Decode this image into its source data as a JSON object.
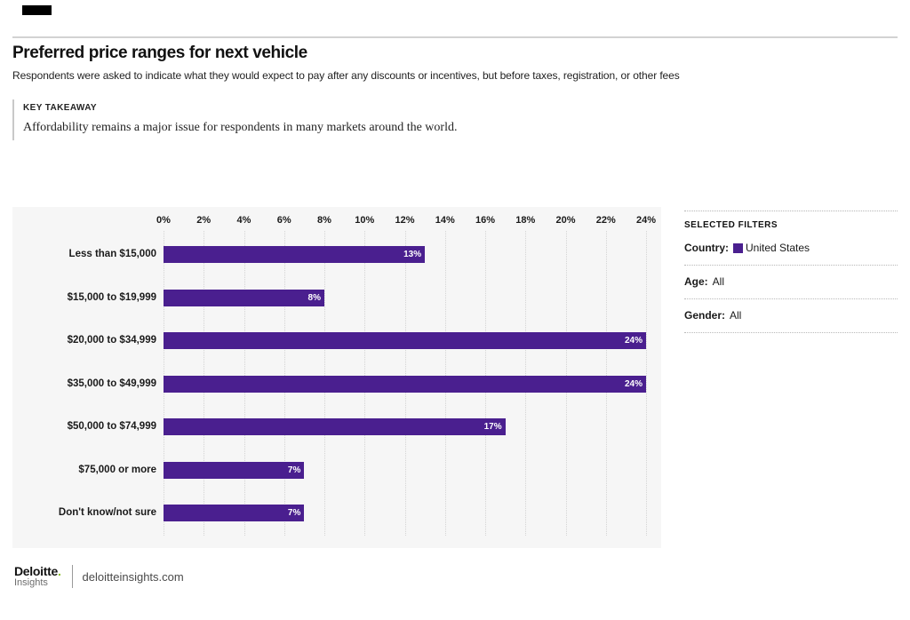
{
  "page": {
    "title": "Preferred price ranges for next vehicle",
    "subtitle": "Respondents were asked to indicate what they would expect to pay after any discounts or incentives, but before taxes, registration, or other fees"
  },
  "key_takeaway": {
    "label": "KEY TAKEAWAY",
    "text": "Affordability remains a major issue for respondents in many markets around the world."
  },
  "chart_data": {
    "type": "bar",
    "orientation": "horizontal",
    "title": "Preferred price ranges for next vehicle",
    "categories": [
      "Less than $15,000",
      "$15,000 to $19,999",
      "$20,000 to $34,999",
      "$35,000 to $49,999",
      "$50,000 to $74,999",
      "$75,000 or more",
      "Don't know/not sure"
    ],
    "values": [
      13,
      8,
      24,
      24,
      17,
      7,
      7
    ],
    "value_labels": [
      "13%",
      "8%",
      "24%",
      "24%",
      "17%",
      "7%",
      "7%"
    ],
    "x_ticks": [
      "0%",
      "2%",
      "4%",
      "6%",
      "8%",
      "10%",
      "12%",
      "14%",
      "16%",
      "18%",
      "20%",
      "22%",
      "24%"
    ],
    "xlim": [
      0,
      24
    ],
    "tick_step": 2,
    "bar_color": "#4a1f8f",
    "grid": true,
    "legend": "none"
  },
  "filters": {
    "heading": "SELECTED FILTERS",
    "items": [
      {
        "label": "Country:",
        "value": "United States",
        "swatch": "#4a1f8f"
      },
      {
        "label": "Age:",
        "value": "All"
      },
      {
        "label": "Gender:",
        "value": "All"
      }
    ]
  },
  "footer": {
    "brand": "Deloitte",
    "brand_dot": ".",
    "brand_sub": "Insights",
    "site": "deloitteinsights.com",
    "accent_green": "#86bc25"
  }
}
